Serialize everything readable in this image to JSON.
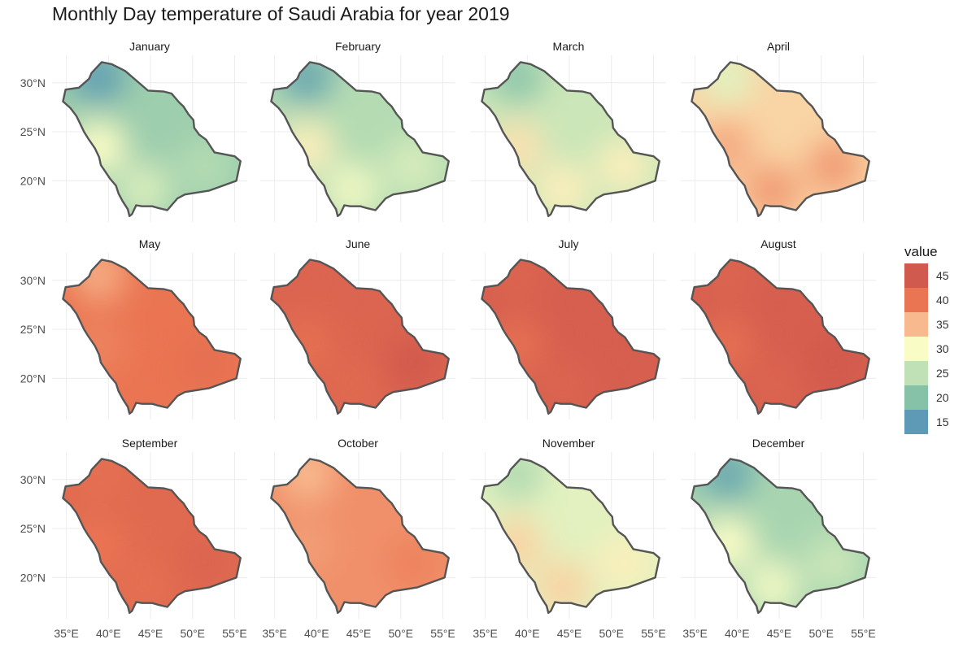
{
  "title": "Monthly Day temperature of Saudi Arabia for year 2019",
  "legend": {
    "title": "value",
    "entries": [
      {
        "label": "45",
        "value": 45,
        "color": "#d15a4e"
      },
      {
        "label": "40",
        "value": 40,
        "color": "#ea7552"
      },
      {
        "label": "35",
        "value": 35,
        "color": "#f8b98e"
      },
      {
        "label": "30",
        "value": 30,
        "color": "#fafcc6"
      },
      {
        "label": "25",
        "value": 25,
        "color": "#bfe1b5"
      },
      {
        "label": "20",
        "value": 20,
        "color": "#86c2a8"
      },
      {
        "label": "15",
        "value": 15,
        "color": "#5e9ab5"
      }
    ]
  },
  "axes": {
    "x_ticks": [
      "35°E",
      "40°E",
      "45°E",
      "50°E",
      "55°E"
    ],
    "y_ticks": [
      "30°N",
      "25°N",
      "20°N"
    ],
    "x_values": [
      35,
      40,
      45,
      50,
      55
    ],
    "y_values": [
      30,
      25,
      20
    ]
  },
  "panels": [
    {
      "month": "January",
      "temps": {
        "north": 16,
        "center": 22,
        "east": 24,
        "south": 27,
        "west": 30
      }
    },
    {
      "month": "February",
      "temps": {
        "north": 17,
        "center": 24,
        "east": 27,
        "south": 29,
        "west": 31
      }
    },
    {
      "month": "March",
      "temps": {
        "north": 21,
        "center": 26,
        "east": 31,
        "south": 31,
        "west": 32
      }
    },
    {
      "month": "April",
      "temps": {
        "north": 28,
        "center": 33,
        "east": 37,
        "south": 37,
        "west": 36
      }
    },
    {
      "month": "May",
      "temps": {
        "north": 36,
        "center": 40,
        "east": 41,
        "south": 40,
        "west": 39
      }
    },
    {
      "month": "June",
      "temps": {
        "north": 43,
        "center": 43,
        "east": 45,
        "south": 42,
        "west": 41
      }
    },
    {
      "month": "July",
      "temps": {
        "north": 43,
        "center": 44,
        "east": 44,
        "south": 43,
        "west": 41
      }
    },
    {
      "month": "August",
      "temps": {
        "north": 43,
        "center": 44,
        "east": 45,
        "south": 43,
        "west": 41
      }
    },
    {
      "month": "September",
      "temps": {
        "north": 41,
        "center": 42,
        "east": 43,
        "south": 41,
        "west": 40
      }
    },
    {
      "month": "October",
      "temps": {
        "north": 35,
        "center": 38,
        "east": 39,
        "south": 38,
        "west": 37
      }
    },
    {
      "month": "November",
      "temps": {
        "north": 24,
        "center": 28,
        "east": 31,
        "south": 33,
        "west": 33
      }
    },
    {
      "month": "December",
      "temps": {
        "north": 17,
        "center": 23,
        "east": 26,
        "south": 29,
        "west": 30
      }
    }
  ]
}
